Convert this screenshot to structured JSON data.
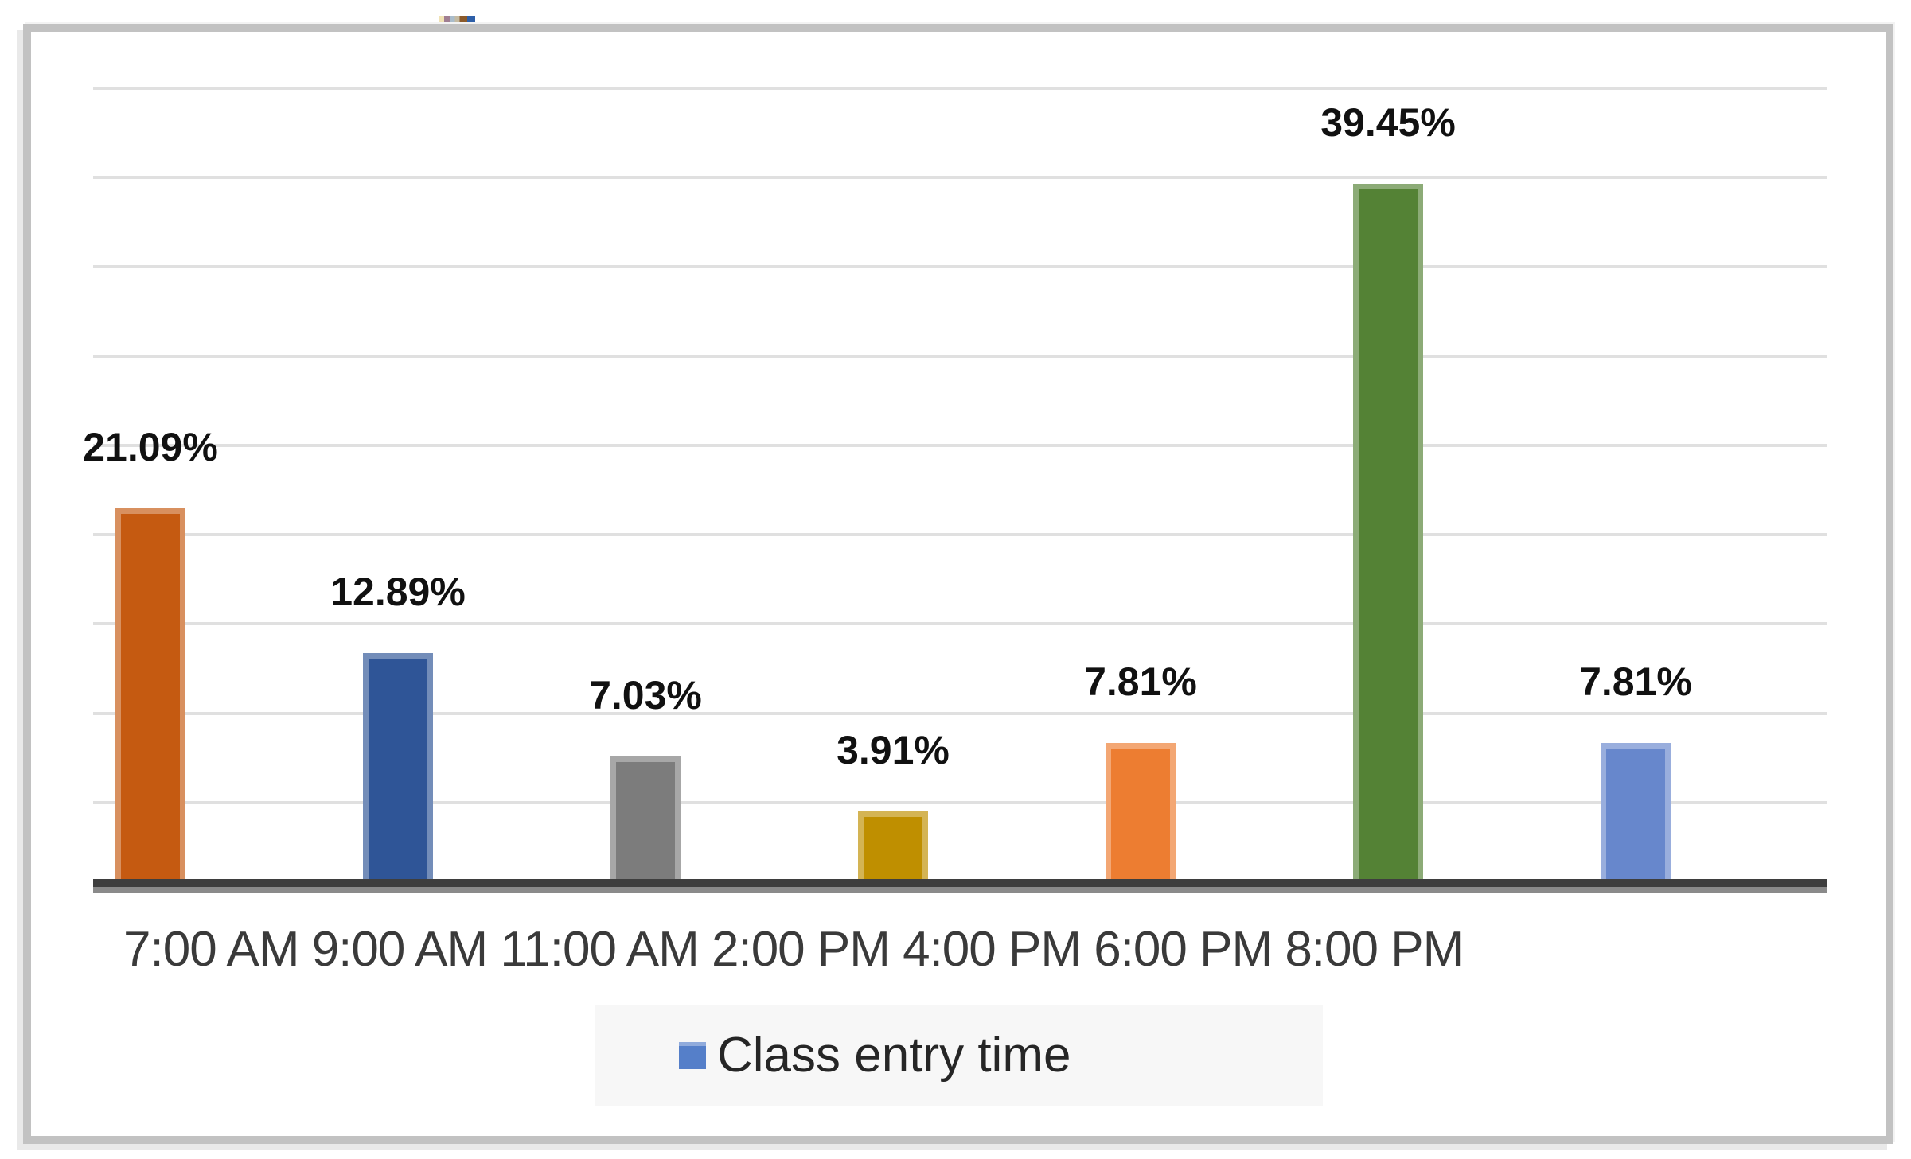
{
  "chart_data": {
    "type": "bar",
    "title": "",
    "categories": [
      "7:00 AM",
      "9:00 AM",
      "11:00 AM",
      "2:00 PM",
      "4:00 PM",
      "6:00 PM",
      "8:00 PM"
    ],
    "values": [
      21.09,
      12.89,
      7.03,
      3.91,
      7.81,
      39.45,
      7.81
    ],
    "value_labels": [
      "21.09%",
      "12.89%",
      "7.03%",
      "3.91%",
      "7.81%",
      "39.45%",
      "7.81%"
    ],
    "bar_colors": [
      "#C55A11",
      "#2F5597",
      "#7C7C7C",
      "#BF8F00",
      "#ED7D31",
      "#548235",
      "#6787CC"
    ],
    "xlabel": "",
    "ylabel": "",
    "ylim": [
      0,
      45
    ],
    "gridline_step_percent": 5,
    "grid": "horizontal",
    "legend_position": "bottom",
    "x_axis_label_text": "7:00 AM 9:00 AM 11:00 AM 2:00 PM 4:00 PM 6:00 PM 8:00 PM"
  },
  "legend": {
    "label": "Class entry time",
    "marker_color": "#557fc9",
    "background": "#f7f7f7"
  },
  "colors": {
    "frame_border": "#c2c2c2",
    "gridline": "#e0e0e0",
    "axis_line_dark": "#3e3e3e",
    "axis_line_gray": "#8a8a8a",
    "value_label_text": "#111111",
    "axis_label_text": "#3a3a3a",
    "background": "#ffffff"
  }
}
